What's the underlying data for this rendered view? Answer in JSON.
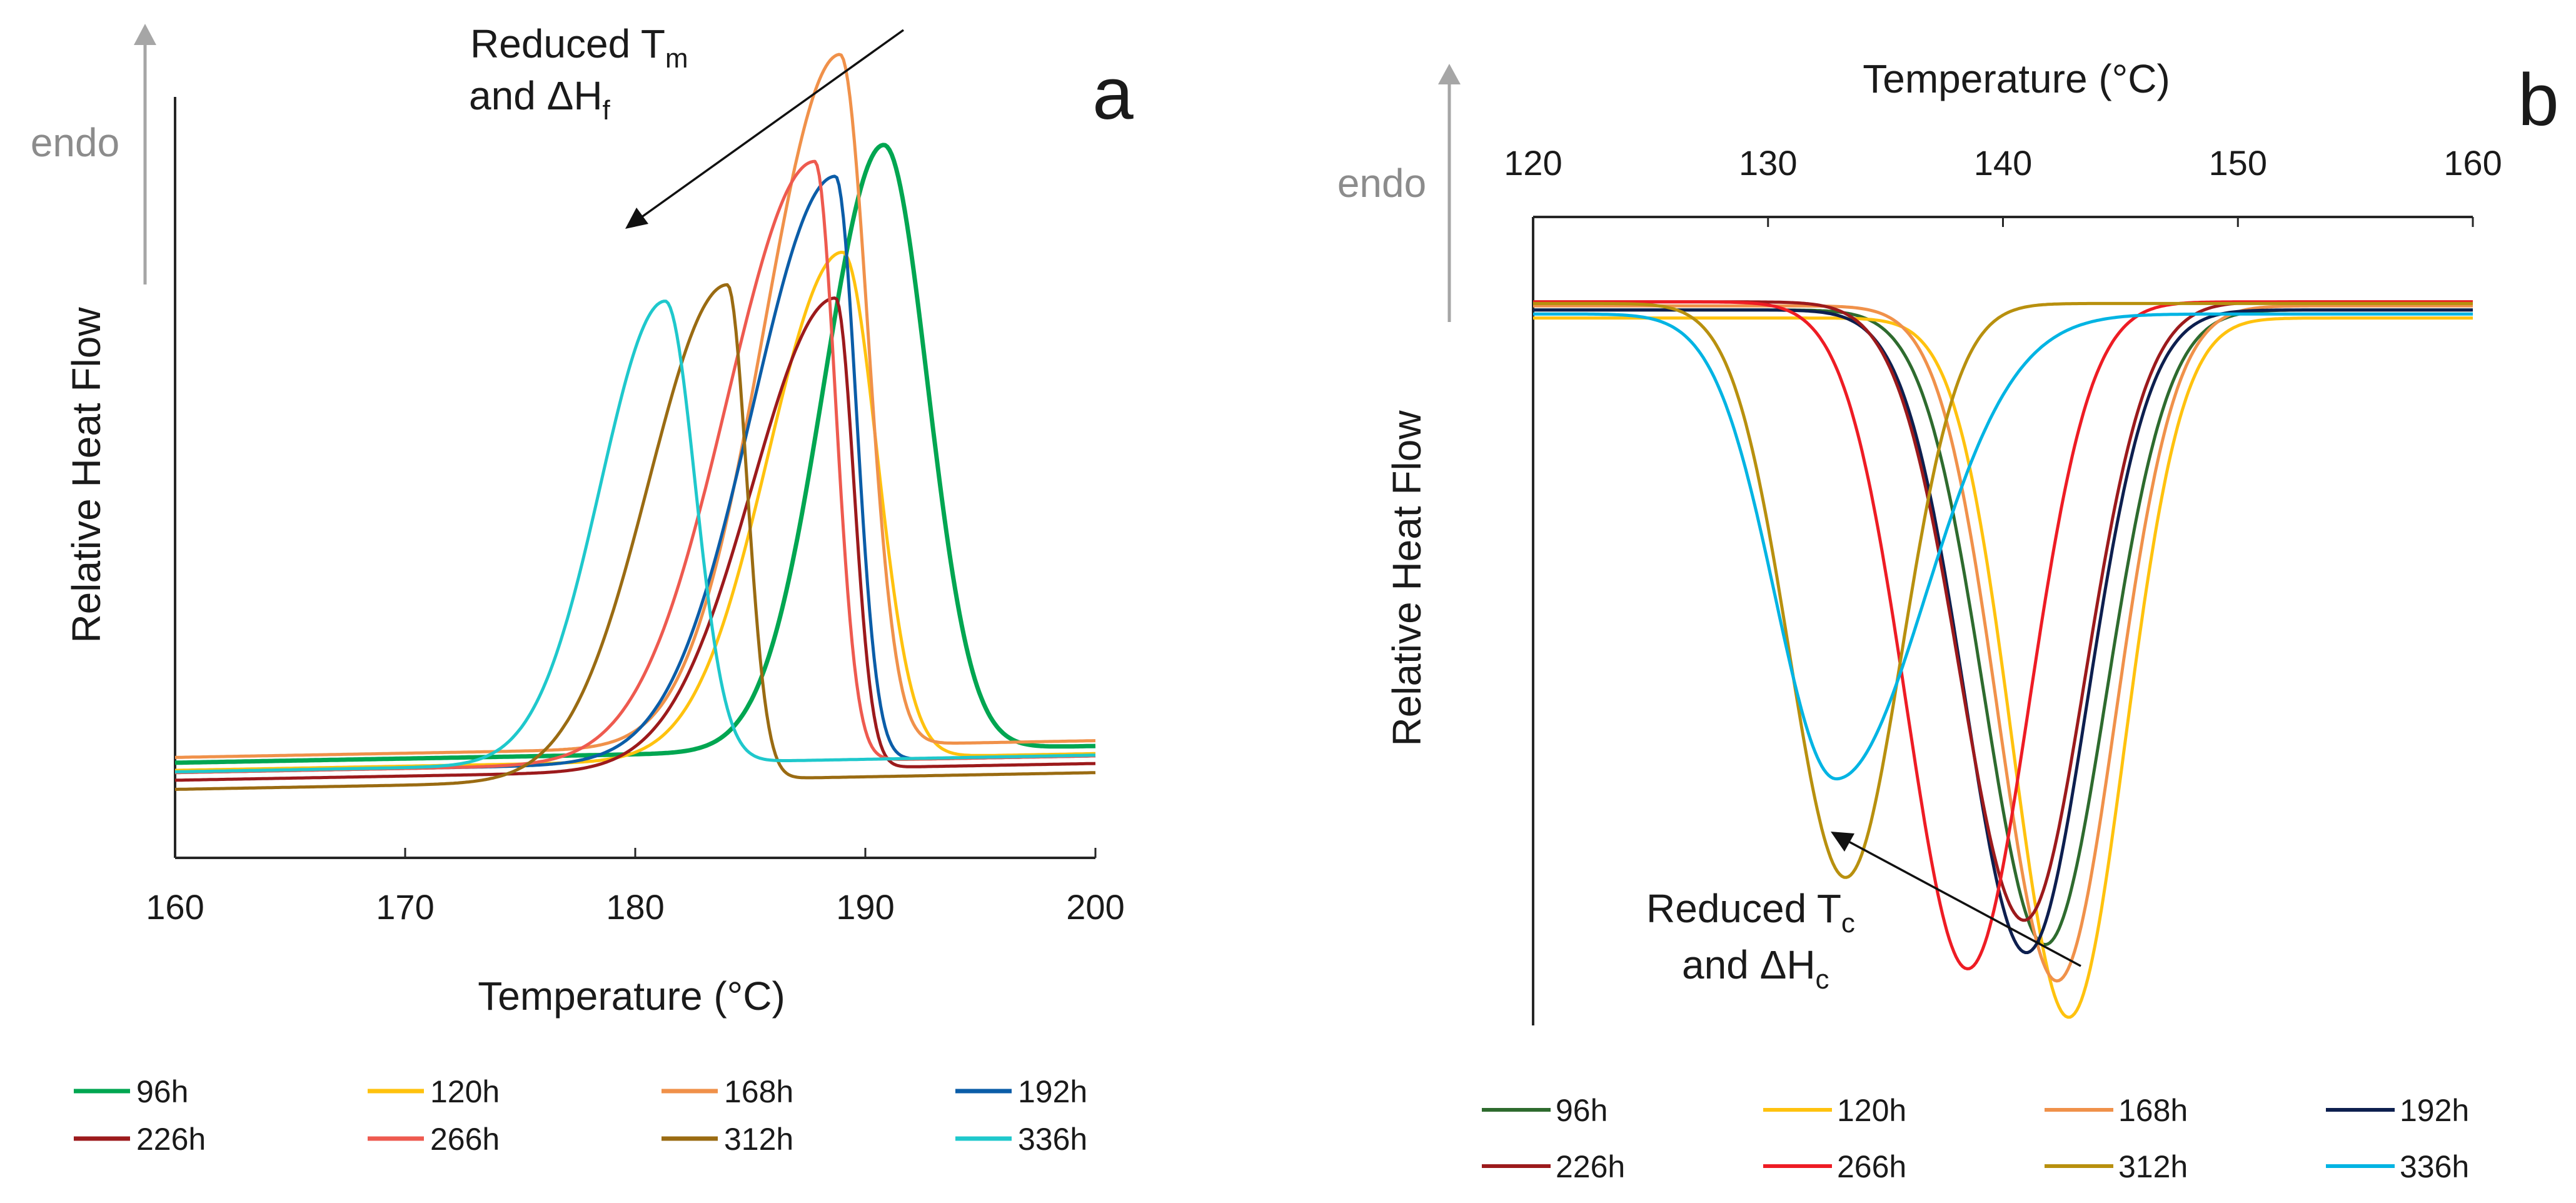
{
  "colors": {
    "a": {
      "96h": "#00a651",
      "120h": "#ffc20e",
      "168h": "#f0914a",
      "192h": "#0b5da8",
      "226h": "#9c1a1c",
      "266h": "#ee5a4f",
      "312h": "#9a6b12",
      "336h": "#1fc8cc"
    },
    "b": {
      "96h": "#2e6b2e",
      "120h": "#ffc20e",
      "168h": "#f0914a",
      "192h": "#0d1f4f",
      "226h": "#9c1a1c",
      "266h": "#ee1c24",
      "312h": "#b8900e",
      "336h": "#00b4e3"
    }
  },
  "chart_data": [
    {
      "panel_label": "a",
      "type": "line",
      "xlabel": "Temperature (°C)",
      "ylabel": "Relative Heat Flow",
      "endo_label": "endo",
      "xlim": [
        160,
        200
      ],
      "x_ticks": [
        "160",
        "170",
        "180",
        "190",
        "200"
      ],
      "ylim": [
        0,
        1
      ],
      "annotation": {
        "main": "Reduced T",
        "sub1": "m",
        "line2": "and ΔH",
        "sub2": "f"
      },
      "legend": [
        "96h",
        "120h",
        "168h",
        "192h",
        "226h",
        "266h",
        "312h",
        "336h"
      ],
      "series": [
        {
          "name": "96h",
          "baseline": 0.125,
          "peak_x": 190.8,
          "peak_height": 0.92,
          "sigma_left": 2.6,
          "sigma_right": 1.9
        },
        {
          "name": "120h",
          "baseline": 0.115,
          "peak_x": 189.0,
          "peak_height": 0.78,
          "sigma_left": 3.2,
          "sigma_right": 1.5
        },
        {
          "name": "168h",
          "baseline": 0.132,
          "peak_x": 188.9,
          "peak_height": 1.04,
          "sigma_left": 3.3,
          "sigma_right": 1.2
        },
        {
          "name": "192h",
          "baseline": 0.112,
          "peak_x": 188.7,
          "peak_height": 0.88,
          "sigma_left": 3.6,
          "sigma_right": 0.9
        },
        {
          "name": "226h",
          "baseline": 0.102,
          "peak_x": 188.7,
          "peak_height": 0.72,
          "sigma_left": 3.6,
          "sigma_right": 0.8
        },
        {
          "name": "266h",
          "baseline": 0.112,
          "peak_x": 187.8,
          "peak_height": 0.9,
          "sigma_left": 3.8,
          "sigma_right": 0.9
        },
        {
          "name": "312h",
          "baseline": 0.09,
          "peak_x": 184.0,
          "peak_height": 0.74,
          "sigma_left": 3.4,
          "sigma_right": 0.85
        },
        {
          "name": "336h",
          "baseline": 0.113,
          "peak_x": 181.3,
          "peak_height": 0.72,
          "sigma_left": 2.8,
          "sigma_right": 1.3
        }
      ]
    },
    {
      "panel_label": "b",
      "type": "line",
      "xlabel": "Temperature (°C)",
      "ylabel": "Relative Heat Flow",
      "endo_label": "endo",
      "xlim": [
        120,
        160
      ],
      "x_ticks": [
        "120",
        "130",
        "140",
        "150",
        "160"
      ],
      "ylim": [
        0,
        1
      ],
      "annotation": {
        "main": "Reduced T",
        "sub1": "c",
        "line2": "and ΔH",
        "sub2": "c"
      },
      "legend": [
        "96h",
        "120h",
        "168h",
        "192h",
        "226h",
        "266h",
        "312h",
        "336h"
      ],
      "series": [
        {
          "name": "96h",
          "baseline": 0.885,
          "peak_x": 141.8,
          "peak_depth": 0.785,
          "sigma_left": 2.6,
          "sigma_right": 2.6
        },
        {
          "name": "120h",
          "baseline": 0.875,
          "peak_x": 142.8,
          "peak_depth": 0.865,
          "sigma_left": 2.4,
          "sigma_right": 2.4
        },
        {
          "name": "168h",
          "baseline": 0.89,
          "peak_x": 142.3,
          "peak_depth": 0.835,
          "sigma_left": 2.5,
          "sigma_right": 2.5
        },
        {
          "name": "192h",
          "baseline": 0.885,
          "peak_x": 141.0,
          "peak_depth": 0.795,
          "sigma_left": 2.6,
          "sigma_right": 2.6
        },
        {
          "name": "226h",
          "baseline": 0.895,
          "peak_x": 140.9,
          "peak_depth": 0.765,
          "sigma_left": 2.7,
          "sigma_right": 2.6
        },
        {
          "name": "266h",
          "baseline": 0.895,
          "peak_x": 138.5,
          "peak_depth": 0.825,
          "sigma_left": 2.6,
          "sigma_right": 2.6
        },
        {
          "name": "312h",
          "baseline": 0.893,
          "peak_x": 133.3,
          "peak_depth": 0.71,
          "sigma_left": 2.4,
          "sigma_right": 2.4
        },
        {
          "name": "336h",
          "baseline": 0.88,
          "peak_x": 132.9,
          "peak_depth": 0.575,
          "sigma_left": 2.6,
          "sigma_right": 3.8
        }
      ]
    }
  ]
}
